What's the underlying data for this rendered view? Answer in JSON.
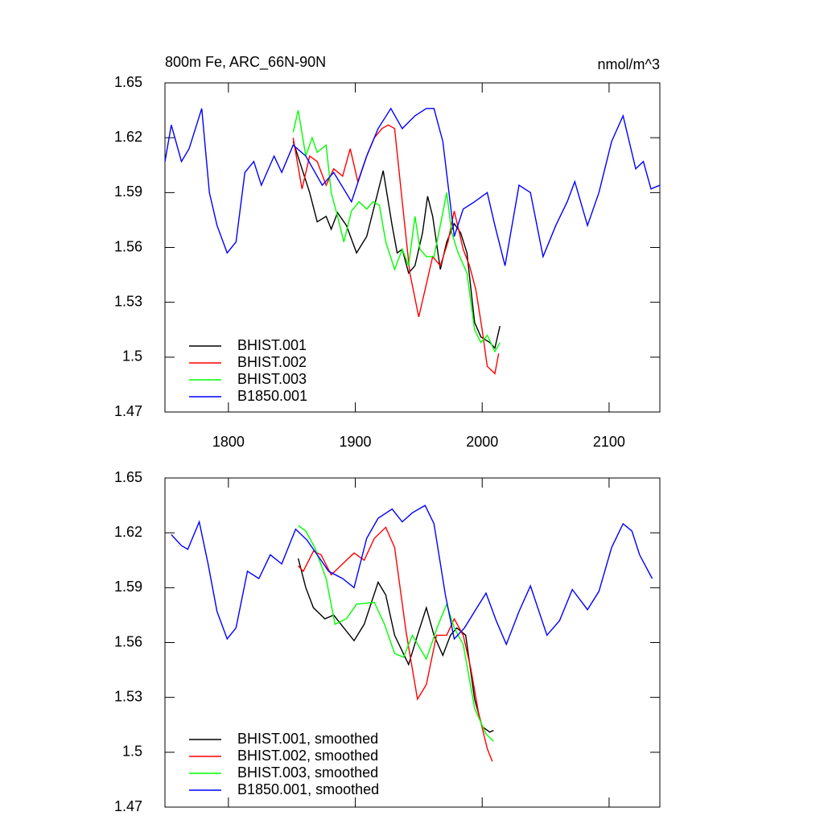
{
  "chart_data": [
    {
      "type": "line",
      "title": "800m Fe, ARC_66N-90N",
      "subtitle": "nmol/m^3",
      "xlim": [
        1750,
        2140
      ],
      "xticks": [
        1800,
        1900,
        2000,
        2100
      ],
      "ylim": [
        1.47,
        1.65
      ],
      "yticks": [
        1.47,
        1.5,
        1.53,
        1.56,
        1.59,
        1.62,
        1.65
      ],
      "legend": "lower left",
      "series": [
        {
          "name": "BHIST.001",
          "color": "#000000",
          "x": [
            1851,
            1858,
            1864,
            1870,
            1877,
            1881,
            1886,
            1893,
            1901,
            1909,
            1917,
            1922,
            1929,
            1933,
            1937,
            1942,
            1947,
            1953,
            1957,
            1961,
            1967,
            1972,
            1978,
            1983,
            1988,
            1994,
            1999,
            2006,
            2010,
            2014
          ],
          "values": [
            1.618,
            1.603,
            1.59,
            1.574,
            1.577,
            1.57,
            1.579,
            1.572,
            1.557,
            1.566,
            1.588,
            1.602,
            1.572,
            1.557,
            1.559,
            1.546,
            1.55,
            1.568,
            1.588,
            1.577,
            1.548,
            1.563,
            1.573,
            1.568,
            1.557,
            1.519,
            1.511,
            1.508,
            1.505,
            1.517
          ]
        },
        {
          "name": "BHIST.002",
          "color": "#ff0000",
          "x": [
            1851,
            1858,
            1864,
            1870,
            1877,
            1883,
            1890,
            1896,
            1902,
            1909,
            1915,
            1921,
            1926,
            1931,
            1937,
            1943,
            1950,
            1955,
            1961,
            1967,
            1973,
            1978,
            1985,
            1990,
            1995,
            2000,
            2004,
            2010,
            2013
          ],
          "values": [
            1.62,
            1.592,
            1.61,
            1.607,
            1.594,
            1.603,
            1.599,
            1.614,
            1.596,
            1.61,
            1.62,
            1.625,
            1.627,
            1.625,
            1.585,
            1.546,
            1.522,
            1.537,
            1.555,
            1.55,
            1.563,
            1.58,
            1.559,
            1.55,
            1.537,
            1.515,
            1.495,
            1.491,
            1.502
          ]
        },
        {
          "name": "BHIST.003",
          "color": "#00ff00",
          "x": [
            1851,
            1855,
            1861,
            1866,
            1870,
            1877,
            1881,
            1886,
            1891,
            1897,
            1903,
            1909,
            1914,
            1919,
            1924,
            1931,
            1937,
            1942,
            1947,
            1951,
            1956,
            1962,
            1967,
            1972,
            1976,
            1981,
            1988,
            1994,
            1999,
            2004,
            2010,
            2014
          ],
          "values": [
            1.623,
            1.635,
            1.61,
            1.62,
            1.612,
            1.616,
            1.59,
            1.577,
            1.563,
            1.58,
            1.585,
            1.581,
            1.585,
            1.583,
            1.563,
            1.548,
            1.559,
            1.55,
            1.577,
            1.559,
            1.555,
            1.555,
            1.572,
            1.59,
            1.568,
            1.557,
            1.546,
            1.515,
            1.508,
            1.512,
            1.503,
            1.508
          ]
        },
        {
          "name": "B1850.001",
          "color": "#0000ff",
          "x": [
            1750,
            1755,
            1763,
            1769,
            1779,
            1785,
            1791,
            1799,
            1806,
            1813,
            1820,
            1826,
            1836,
            1842,
            1851,
            1861,
            1874,
            1883,
            1897,
            1909,
            1918,
            1928,
            1937,
            1947,
            1956,
            1962,
            1969,
            1978,
            1985,
            1994,
            2004,
            2010,
            2018,
            2029,
            2038,
            2048,
            2058,
            2067,
            2073,
            2083,
            2092,
            2102,
            2111,
            2121,
            2127,
            2133,
            2140
          ],
          "values": [
            1.607,
            1.627,
            1.607,
            1.614,
            1.636,
            1.59,
            1.572,
            1.557,
            1.563,
            1.601,
            1.607,
            1.594,
            1.61,
            1.601,
            1.616,
            1.61,
            1.594,
            1.601,
            1.585,
            1.61,
            1.625,
            1.636,
            1.625,
            1.632,
            1.636,
            1.636,
            1.618,
            1.566,
            1.581,
            1.585,
            1.59,
            1.572,
            1.55,
            1.594,
            1.59,
            1.555,
            1.572,
            1.585,
            1.596,
            1.572,
            1.59,
            1.618,
            1.632,
            1.603,
            1.607,
            1.592,
            1.594
          ]
        }
      ]
    },
    {
      "type": "line",
      "xlim": [
        1750,
        2140
      ],
      "xticks": [
        1800,
        1900,
        2000,
        2100
      ],
      "ylim": [
        1.47,
        1.65
      ],
      "yticks": [
        1.47,
        1.5,
        1.53,
        1.56,
        1.59,
        1.62,
        1.65
      ],
      "legend": "lower left",
      "series": [
        {
          "name": "BHIST.001, smoothed",
          "color": "#000000",
          "x": [
            1855,
            1861,
            1867,
            1876,
            1883,
            1891,
            1899,
            1907,
            1918,
            1924,
            1931,
            1942,
            1949,
            1956,
            1962,
            1969,
            1975,
            1980,
            1987,
            1994,
            2000,
            2006,
            2009
          ],
          "values": [
            1.606,
            1.59,
            1.579,
            1.573,
            1.575,
            1.568,
            1.561,
            1.57,
            1.593,
            1.586,
            1.564,
            1.548,
            1.564,
            1.579,
            1.564,
            1.553,
            1.564,
            1.568,
            1.564,
            1.529,
            1.514,
            1.511,
            1.512
          ]
        },
        {
          "name": "BHIST.002, smoothed",
          "color": "#ff0000",
          "x": [
            1855,
            1859,
            1867,
            1873,
            1881,
            1890,
            1899,
            1907,
            1915,
            1924,
            1931,
            1940,
            1949,
            1956,
            1964,
            1972,
            1978,
            1985,
            1991,
            1997,
            2004,
            2008
          ],
          "values": [
            1.602,
            1.599,
            1.61,
            1.608,
            1.597,
            1.603,
            1.609,
            1.605,
            1.617,
            1.623,
            1.612,
            1.566,
            1.529,
            1.537,
            1.564,
            1.564,
            1.573,
            1.564,
            1.546,
            1.522,
            1.502,
            1.495
          ]
        },
        {
          "name": "BHIST.003, smoothed",
          "color": "#00ff00",
          "x": [
            1855,
            1861,
            1868,
            1877,
            1884,
            1893,
            1901,
            1915,
            1923,
            1931,
            1938,
            1945,
            1956,
            1965,
            1972,
            1978,
            1985,
            1994,
            2003,
            2009
          ],
          "values": [
            1.624,
            1.621,
            1.612,
            1.595,
            1.57,
            1.573,
            1.581,
            1.582,
            1.57,
            1.554,
            1.552,
            1.564,
            1.551,
            1.569,
            1.581,
            1.568,
            1.559,
            1.524,
            1.51,
            1.506
          ]
        },
        {
          "name": "B1850.001, smoothed",
          "color": "#0000ff",
          "x": [
            1755,
            1763,
            1768,
            1777,
            1784,
            1791,
            1799,
            1806,
            1815,
            1824,
            1833,
            1842,
            1853,
            1862,
            1870,
            1879,
            1890,
            1899,
            1909,
            1918,
            1929,
            1937,
            1945,
            1955,
            1962,
            1971,
            1978,
            1986,
            1994,
            2003,
            2011,
            2019,
            2029,
            2038,
            2051,
            2061,
            2071,
            2083,
            2092,
            2102,
            2111,
            2118,
            2124,
            2134
          ],
          "values": [
            1.619,
            1.613,
            1.611,
            1.626,
            1.603,
            1.577,
            1.562,
            1.568,
            1.599,
            1.595,
            1.608,
            1.603,
            1.622,
            1.616,
            1.608,
            1.599,
            1.595,
            1.59,
            1.617,
            1.628,
            1.633,
            1.626,
            1.631,
            1.635,
            1.625,
            1.586,
            1.562,
            1.568,
            1.577,
            1.587,
            1.572,
            1.559,
            1.577,
            1.591,
            1.564,
            1.572,
            1.589,
            1.578,
            1.588,
            1.612,
            1.625,
            1.621,
            1.608,
            1.595
          ]
        }
      ]
    }
  ]
}
